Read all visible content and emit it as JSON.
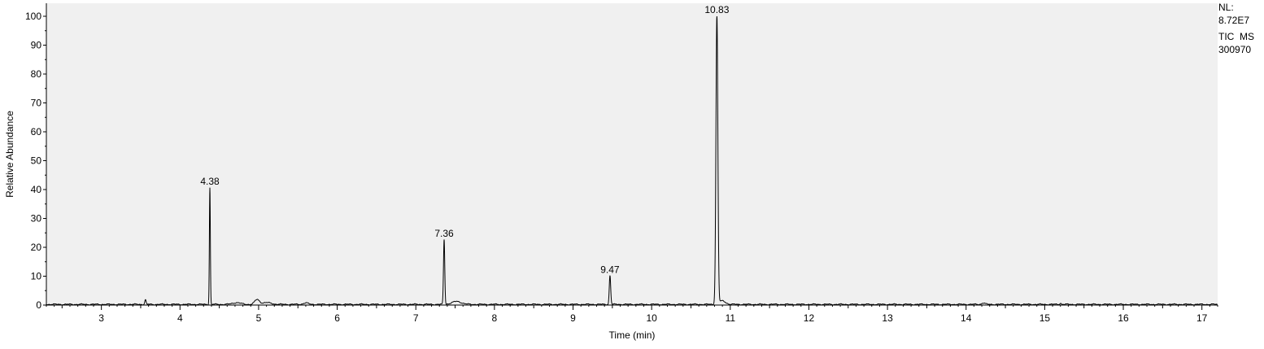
{
  "chart_data": {
    "type": "line",
    "xlabel": "Time (min)",
    "ylabel": "Relative Abundance",
    "xlim": [
      2.3,
      17.2
    ],
    "ylim": [
      0,
      100
    ],
    "x_ticks": [
      3,
      4,
      5,
      6,
      7,
      8,
      9,
      10,
      11,
      12,
      13,
      14,
      15,
      16,
      17
    ],
    "y_ticks": [
      0,
      10,
      20,
      30,
      40,
      50,
      60,
      70,
      80,
      90,
      100
    ],
    "grid": false,
    "colors": {
      "background": "#f0f0f0",
      "trace": "#000000"
    },
    "peaks": [
      {
        "rt": 3.56,
        "height": 1.6,
        "width": 0.008
      },
      {
        "rt": 4.38,
        "height": 40.5,
        "width": 0.006
      },
      {
        "rt": 4.72,
        "height": 0.6,
        "width": 0.05
      },
      {
        "rt": 4.98,
        "height": 1.6,
        "width": 0.03
      },
      {
        "rt": 5.1,
        "height": 0.6,
        "width": 0.06
      },
      {
        "rt": 5.6,
        "height": 0.5,
        "width": 0.03
      },
      {
        "rt": 7.36,
        "height": 22.5,
        "width": 0.008
      },
      {
        "rt": 7.52,
        "height": 1.0,
        "width": 0.06
      },
      {
        "rt": 9.47,
        "height": 10.0,
        "width": 0.009
      },
      {
        "rt": 10.83,
        "height": 100,
        "width": 0.012
      },
      {
        "rt": 10.9,
        "height": 1.2,
        "width": 0.04
      },
      {
        "rt": 14.22,
        "height": 0.5,
        "width": 0.02
      },
      {
        "rt": 15.2,
        "height": 0.4,
        "width": 0.01
      }
    ],
    "peak_labels": [
      {
        "rt": 4.38,
        "height": 40.5,
        "text": "4.38"
      },
      {
        "rt": 7.36,
        "height": 22.5,
        "text": "7.36"
      },
      {
        "rt": 9.47,
        "height": 10.0,
        "text": "9.47"
      },
      {
        "rt": 10.83,
        "height": 100,
        "text": "10.83"
      }
    ]
  },
  "annotation": {
    "nl_label": "NL:",
    "nl_value": "8.72E7",
    "scan_filter": "TIC  MS",
    "file_name": "300970"
  }
}
